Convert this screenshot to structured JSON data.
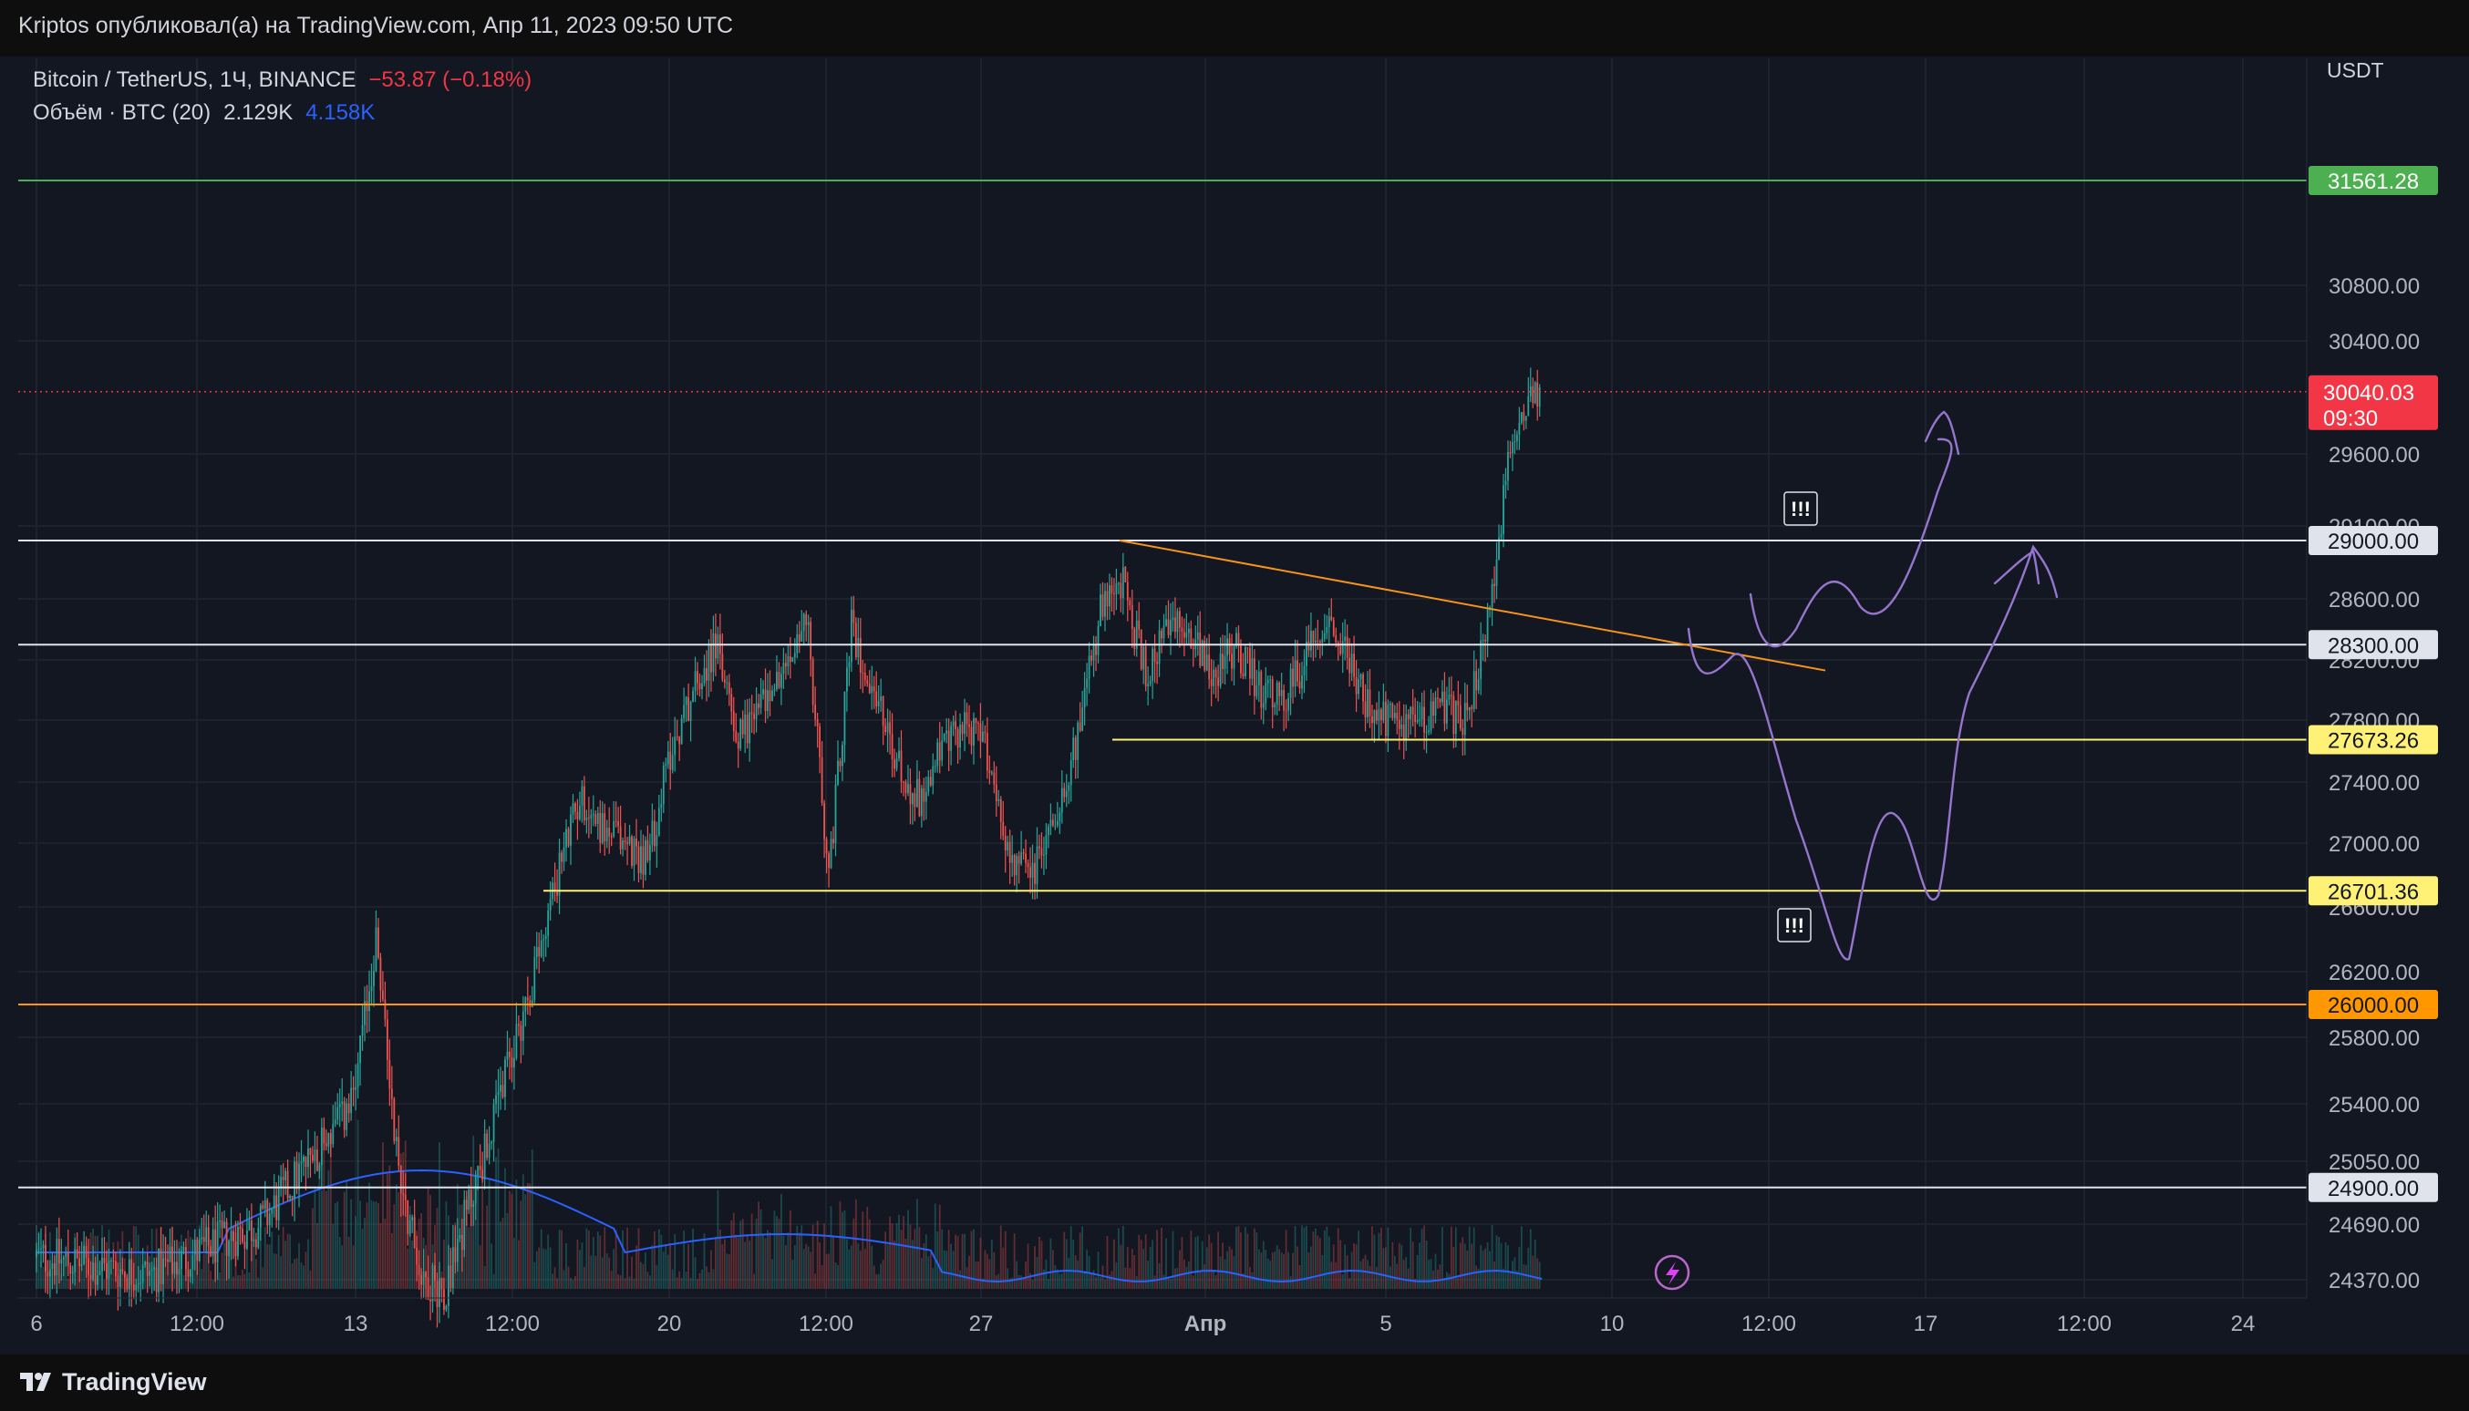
{
  "publisher": "Kriptos опубликовал(а) на TradingView.com, Апр 11, 2023 09:50 UTC",
  "branding": "TradingView",
  "legend": {
    "symbol": "Bitcoin / TetherUS, 1Ч, BINANCE",
    "change": "−53.87 (−0.18%)",
    "volume_label": "Объём · BTC (20)",
    "volume_value": "2.129K",
    "volume_ma": "4.158K"
  },
  "currency": "USDT",
  "colors": {
    "up": "#26a69a",
    "down": "#ef5350",
    "volume_ma": "#2962ff",
    "projection": "#9575cd",
    "trendline": "#f7931a"
  },
  "chart_data": {
    "type": "candlestick",
    "symbol": "BTC/USDT",
    "interval": "1h",
    "y_axis": {
      "ticks": [
        24370,
        24690,
        25050,
        25400,
        25800,
        26200,
        26600,
        27000,
        27400,
        27800,
        28200,
        28600,
        29100,
        29600,
        30400,
        30800
      ],
      "tick_labels": [
        "24370.00",
        "24690.00",
        "25050.00",
        "25400.00",
        "25800.00",
        "26200.00",
        "26600.00",
        "27000.00",
        "27400.00",
        "27800.00",
        "28200.00",
        "28600.00",
        "29100.00",
        "29600.00",
        "30400.00",
        "30800.00"
      ]
    },
    "x_axis": {
      "tick_labels": [
        "6",
        "12:00",
        "13",
        "12:00",
        "20",
        "12:00",
        "27",
        "Апр",
        "5",
        "10",
        "12:00",
        "17",
        "12:00",
        "24"
      ]
    },
    "current_price": {
      "value": 30040.03,
      "label": "30040.03",
      "countdown": "09:30"
    },
    "horizontal_levels": [
      {
        "value": 31561.28,
        "label": "31561.28",
        "color": "#4caf50",
        "text_color": "#ffffff"
      },
      {
        "value": 29000.0,
        "label": "29000.00",
        "color": "#e0e3eb",
        "text_color": "#131722"
      },
      {
        "value": 28300.0,
        "label": "28300.00",
        "color": "#e0e3eb",
        "text_color": "#131722"
      },
      {
        "value": 27673.26,
        "label": "27673.26",
        "color": "#fff176",
        "text_color": "#131722"
      },
      {
        "value": 26701.36,
        "label": "26701.36",
        "color": "#fff176",
        "text_color": "#131722"
      },
      {
        "value": 26000.0,
        "label": "26000.00",
        "color": "#ff9800",
        "text_color": "#131722"
      },
      {
        "value": 24900.0,
        "label": "24900.00",
        "color": "#e0e3eb",
        "text_color": "#131722"
      }
    ],
    "annotations": [
      "!!!",
      "!!!"
    ],
    "price_path": [
      [
        0,
        24500
      ],
      [
        5,
        24400
      ],
      [
        10,
        24700
      ],
      [
        14,
        25400
      ],
      [
        15,
        26400
      ],
      [
        16,
        25000
      ],
      [
        17,
        24400
      ],
      [
        18,
        24300
      ],
      [
        20,
        25200
      ],
      [
        22,
        26200
      ],
      [
        23,
        26800
      ],
      [
        24,
        27300
      ],
      [
        25,
        27100
      ],
      [
        27,
        26900
      ],
      [
        28,
        27600
      ],
      [
        29,
        28000
      ],
      [
        30,
        28300
      ],
      [
        31,
        27700
      ],
      [
        33,
        28100
      ],
      [
        34,
        28500
      ],
      [
        35,
        26800
      ],
      [
        36,
        28400
      ],
      [
        37,
        28000
      ],
      [
        38,
        27500
      ],
      [
        39,
        27300
      ],
      [
        40,
        27600
      ],
      [
        41,
        27800
      ],
      [
        42,
        27600
      ],
      [
        43,
        26900
      ],
      [
        44,
        26800
      ],
      [
        45,
        27200
      ],
      [
        46,
        27700
      ],
      [
        47,
        28500
      ],
      [
        48,
        28700
      ],
      [
        49,
        28100
      ],
      [
        50,
        28400
      ],
      [
        51,
        28400
      ],
      [
        52,
        28100
      ],
      [
        53,
        28300
      ],
      [
        54,
        28000
      ],
      [
        55,
        27900
      ],
      [
        56,
        28200
      ],
      [
        57,
        28500
      ],
      [
        58,
        28200
      ],
      [
        59,
        27800
      ],
      [
        60,
        27800
      ],
      [
        61,
        27800
      ],
      [
        62,
        27900
      ],
      [
        63,
        27800
      ],
      [
        64,
        28300
      ],
      [
        65,
        29500
      ],
      [
        66,
        30100
      ],
      [
        66.5,
        30040
      ]
    ]
  }
}
